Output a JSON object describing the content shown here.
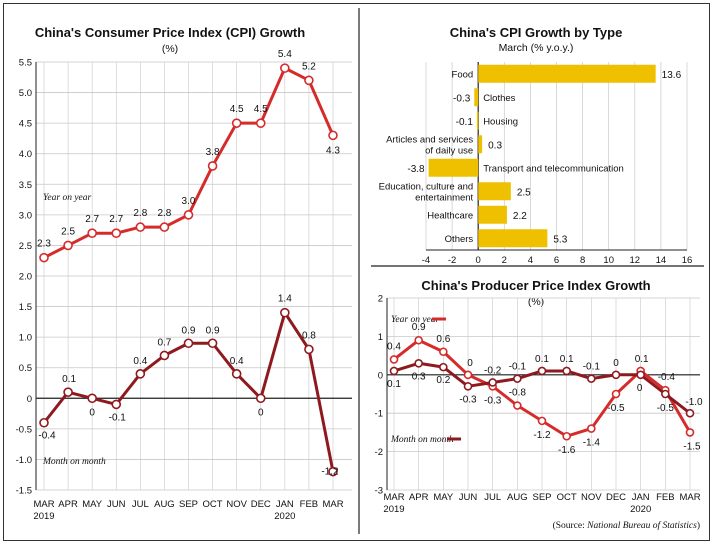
{
  "colors": {
    "yoy": "#d62b2b",
    "mom": "#8e1a1f",
    "bar": "#eec000",
    "grid": "#c8c8c8"
  },
  "source": {
    "prefix": "(Source: ",
    "name": "National Bureau of Statistics",
    "suffix": ")"
  },
  "chart_data": [
    {
      "id": "cpi",
      "type": "line",
      "title": "China's Consumer Price Index (CPI) Growth",
      "subtitle": "(%)",
      "categories": [
        "MAR",
        "APR",
        "MAY",
        "JUN",
        "JUL",
        "AUG",
        "SEP",
        "OCT",
        "NOV",
        "DEC",
        "JAN",
        "FEB",
        "MAR"
      ],
      "year_labels": [
        {
          "index": 0,
          "text": "2019"
        },
        {
          "index": 10,
          "text": "2020"
        }
      ],
      "ylim": [
        -1.5,
        5.5
      ],
      "yticks": [
        "5.5",
        "5.0",
        "4.5",
        "4.0",
        "3.5",
        "3.0",
        "2.5",
        "2.0",
        "1.5",
        "1.0",
        "0.5",
        "0",
        "-0.5",
        "-1.0",
        "-1.5"
      ],
      "grid": true,
      "series": [
        {
          "name": "Year on year",
          "values": [
            2.3,
            2.5,
            2.7,
            2.7,
            2.8,
            2.8,
            3.0,
            3.8,
            4.5,
            4.5,
            5.4,
            5.2,
            4.3
          ],
          "labels": [
            "2.3",
            "2.5",
            "2.7",
            "2.7",
            "2.8",
            "2.8",
            "3.0",
            "3.8",
            "4.5",
            "4.5",
            "5.4",
            "5.2",
            "4.3"
          ]
        },
        {
          "name": "Month on month",
          "values": [
            -0.4,
            0.1,
            0,
            -0.1,
            0.4,
            0.7,
            0.9,
            0.9,
            0.4,
            0,
            1.4,
            0.8,
            -1.2
          ],
          "labels": [
            "-0.4",
            "0.1",
            "0",
            "-0.1",
            "0.4",
            "0.7",
            "0.9",
            "0.9",
            "0.4",
            "0",
            "1.4",
            "0.8",
            "-1.2"
          ]
        }
      ]
    },
    {
      "id": "type",
      "type": "bar",
      "orientation": "horizontal",
      "title": "China's CPI Growth by Type",
      "subtitle": "March (% y.o.y.)",
      "categories": [
        [
          "Food"
        ],
        [
          "Clothes"
        ],
        [
          "Housing"
        ],
        [
          "Articles and services",
          "of daily use"
        ],
        [
          "Transport and telecommunication"
        ],
        [
          "Education, culture and",
          "entertainment"
        ],
        [
          "Healthcare"
        ],
        [
          "Others"
        ]
      ],
      "values": [
        13.6,
        -0.3,
        -0.1,
        0.3,
        -3.8,
        2.5,
        2.2,
        5.3
      ],
      "labels": [
        "13.6",
        "-0.3",
        "-0.1",
        "0.3",
        "-3.8",
        "2.5",
        "2.2",
        "5.3"
      ],
      "xlim": [
        -4,
        16
      ],
      "xticks": [
        "-4",
        "-2",
        "0",
        "2",
        "4",
        "6",
        "8",
        "10",
        "12",
        "14",
        "16"
      ],
      "grid": true
    },
    {
      "id": "ppi",
      "type": "line",
      "title": "China's Producer Price Index Growth",
      "subtitle": "(%)",
      "categories": [
        "MAR",
        "APR",
        "MAY",
        "JUN",
        "JUL",
        "AUG",
        "SEP",
        "OCT",
        "NOV",
        "DEC",
        "JAN",
        "FEB",
        "MAR"
      ],
      "year_labels": [
        {
          "index": 0,
          "text": "2019"
        },
        {
          "index": 10,
          "text": "2020"
        }
      ],
      "ylim": [
        -3,
        2
      ],
      "yticks": [
        "2",
        "1",
        "0",
        "-1",
        "-2",
        "-3"
      ],
      "grid": true,
      "series": [
        {
          "name": "Year on year",
          "values": [
            0.4,
            0.9,
            0.6,
            0,
            -0.3,
            -0.8,
            -1.2,
            -1.6,
            -1.4,
            -0.5,
            0.1,
            -0.4,
            -1.5
          ],
          "labels": [
            "0.4",
            "0.9",
            "0.6",
            "0",
            "-0.3",
            "-0.8",
            "-1.2",
            "-1.6",
            "-1.4",
            "-0.5",
            "0.1",
            "-0.4",
            "-1.5"
          ]
        },
        {
          "name": "Month on month",
          "values": [
            0.1,
            0.3,
            0.2,
            -0.3,
            -0.2,
            -0.1,
            0.1,
            0.1,
            -0.1,
            0,
            0,
            -0.5,
            -1.0
          ],
          "labels": [
            "0.1",
            "0.3",
            "0.2",
            "-0.3",
            "-0.2",
            "-0.1",
            "0.1",
            "0.1",
            "-0.1",
            "0",
            "0",
            "-0.5",
            "-1.0"
          ]
        }
      ]
    }
  ]
}
